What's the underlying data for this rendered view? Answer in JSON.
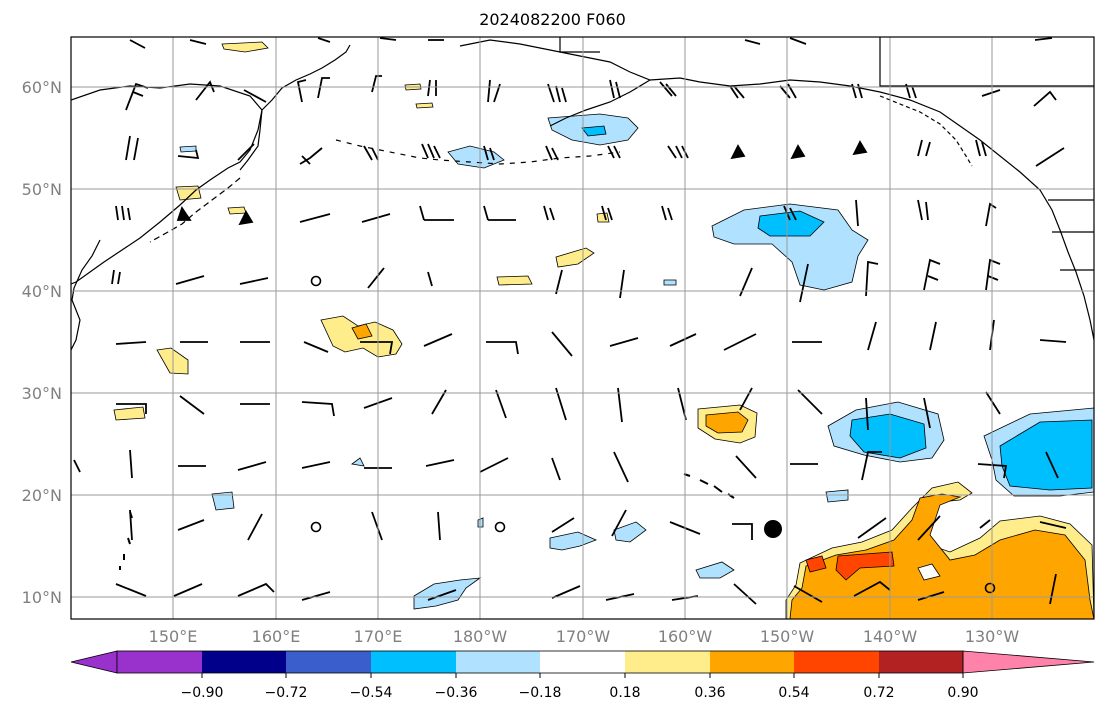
{
  "title": "2024082200 F060",
  "lat_labels": [
    "60°N",
    "50°N",
    "40°N",
    "30°N",
    "20°N",
    "10°N"
  ],
  "lon_labels": [
    "150°E",
    "160°E",
    "170°E",
    "180°W",
    "170°W",
    "160°W",
    "150°W",
    "140°W",
    "130°W"
  ],
  "colorbar": {
    "ticks": [
      "−0.90",
      "−0.72",
      "−0.54",
      "−0.36",
      "−0.18",
      "0.18",
      "0.36",
      "0.54",
      "0.72",
      "0.90"
    ],
    "colors": {
      "under": "#9932cc",
      "bins": [
        "#00008b",
        "#3a5fcd",
        "#00bfff",
        "#b0e2ff",
        "#ffffff",
        "#ffec8b",
        "#ffa500",
        "#ff4500",
        "#b22222"
      ],
      "over": "#ff82ab"
    }
  }
}
